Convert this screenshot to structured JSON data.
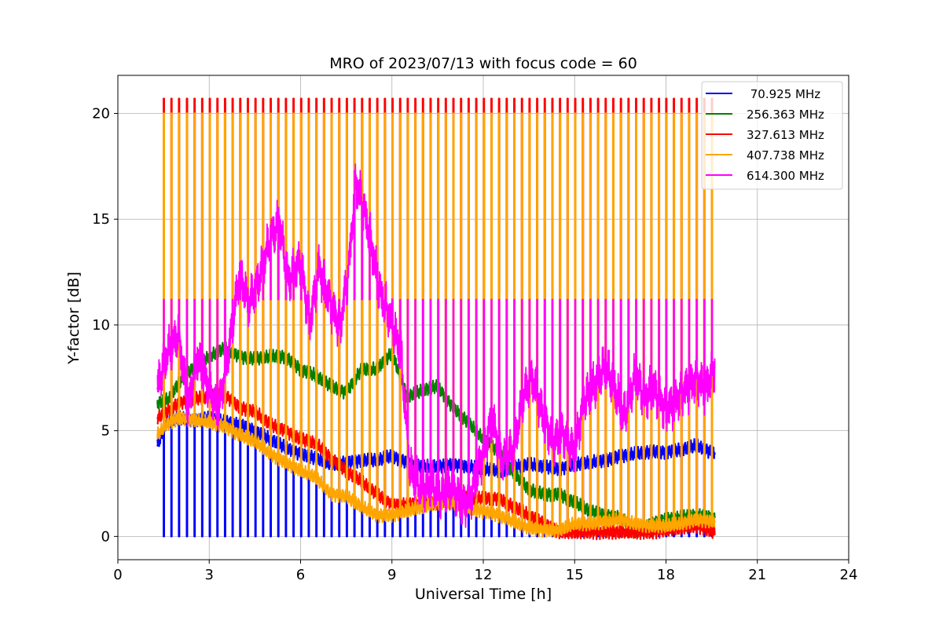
{
  "chart_data": {
    "type": "line",
    "title": "MRO of 2023/07/13 with focus code = 60",
    "xlabel": "Universal Time [h]",
    "ylabel": "Y-factor [dB]",
    "xlim": [
      0,
      24
    ],
    "ylim": [
      -1.1,
      21.8
    ],
    "xticks": [
      0,
      3,
      6,
      9,
      12,
      15,
      18,
      21,
      24
    ],
    "yticks": [
      0,
      5,
      10,
      15,
      20
    ],
    "grid": true,
    "legend_position": "top-right",
    "series": [
      {
        "name": "70.925 MHz",
        "legend_label": " 70.925 MHz",
        "color": "#0000ff",
        "calibration_spike_low": 0.0,
        "calibration_spike_start": 1.5,
        "calibration_spike_end": 19.6,
        "calibration_spike_period": 0.25,
        "x": [
          1.3,
          1.6,
          2.0,
          2.5,
          3.0,
          3.5,
          4.0,
          4.5,
          5.0,
          5.5,
          6.0,
          6.5,
          7.0,
          7.5,
          8.0,
          8.5,
          9.0,
          9.5,
          10.0,
          10.5,
          11.0,
          11.5,
          12.0,
          12.5,
          13.0,
          13.5,
          14.0,
          14.5,
          15.0,
          15.5,
          16.0,
          16.5,
          17.0,
          17.5,
          18.0,
          18.5,
          19.0,
          19.6
        ],
        "y": [
          4.3,
          5.4,
          5.6,
          5.5,
          5.6,
          5.4,
          5.3,
          5.0,
          4.6,
          4.2,
          3.9,
          3.7,
          3.4,
          3.5,
          3.6,
          3.6,
          3.8,
          3.5,
          3.3,
          3.3,
          3.4,
          3.3,
          3.2,
          3.1,
          3.3,
          3.4,
          3.3,
          3.2,
          3.4,
          3.5,
          3.6,
          3.8,
          3.9,
          4.0,
          4.0,
          4.1,
          4.3,
          3.9
        ]
      },
      {
        "name": "256.363 MHz",
        "color": "#008000",
        "x": [
          1.3,
          1.7,
          2.0,
          2.5,
          3.0,
          3.5,
          4.0,
          4.5,
          5.0,
          5.5,
          6.0,
          6.5,
          7.0,
          7.5,
          8.0,
          8.5,
          9.0,
          9.5,
          10.0,
          10.5,
          11.0,
          11.5,
          12.0,
          12.5,
          13.0,
          13.5,
          14.0,
          14.5,
          15.0,
          15.5,
          16.0,
          16.5,
          17.0,
          17.5,
          18.0,
          18.5,
          19.0,
          19.6
        ],
        "y": [
          6.3,
          6.5,
          7.3,
          8.0,
          8.5,
          8.9,
          8.5,
          8.4,
          8.5,
          8.5,
          7.9,
          7.6,
          7.1,
          6.8,
          7.9,
          7.9,
          8.7,
          6.6,
          6.9,
          7.1,
          6.1,
          5.4,
          4.6,
          4.0,
          3.0,
          2.2,
          2.0,
          2.0,
          1.6,
          1.2,
          1.0,
          0.9,
          0.2,
          0.6,
          0.8,
          0.9,
          1.0,
          0.9
        ]
      },
      {
        "name": "327.613 MHz",
        "color": "#ff0000",
        "calibration_spike_high": 20.7,
        "calibration_spike_start": 1.5,
        "calibration_spike_end": 19.6,
        "calibration_spike_period": 0.25,
        "x": [
          1.3,
          1.7,
          2.0,
          2.5,
          3.0,
          3.5,
          4.0,
          4.5,
          5.0,
          5.5,
          6.0,
          6.5,
          7.0,
          7.5,
          8.0,
          8.5,
          9.0,
          9.5,
          10.0,
          10.5,
          11.0,
          11.5,
          12.0,
          12.5,
          13.0,
          13.5,
          14.0,
          14.5,
          15.0,
          15.5,
          16.0,
          16.5,
          17.0,
          17.5,
          18.0,
          18.5,
          19.0,
          19.6
        ],
        "y": [
          5.6,
          6.0,
          6.3,
          6.5,
          6.6,
          6.7,
          6.1,
          5.9,
          5.3,
          5.0,
          4.6,
          4.4,
          3.7,
          3.1,
          2.6,
          2.0,
          1.5,
          1.5,
          1.6,
          1.6,
          1.7,
          1.8,
          1.8,
          1.8,
          1.4,
          1.0,
          0.6,
          0.2,
          0.2,
          0.2,
          0.2,
          0.2,
          0.2,
          0.2,
          0.3,
          0.4,
          0.5,
          0.2
        ]
      },
      {
        "name": "407.738 MHz",
        "color": "#ffa500",
        "calibration_spike_high": 20.0,
        "calibration_spike_start": 1.5,
        "calibration_spike_end": 19.6,
        "calibration_spike_period": 0.25,
        "x": [
          1.3,
          1.6,
          2.0,
          2.5,
          3.0,
          3.5,
          4.0,
          4.5,
          5.0,
          5.5,
          6.0,
          6.5,
          7.0,
          7.5,
          8.0,
          8.5,
          9.0,
          9.5,
          10.0,
          10.5,
          11.0,
          11.5,
          12.0,
          12.5,
          13.0,
          13.5,
          14.0,
          14.5,
          15.0,
          15.5,
          16.0,
          16.5,
          17.0,
          17.5,
          18.0,
          18.5,
          19.0,
          19.6
        ],
        "y": [
          4.8,
          5.3,
          5.6,
          5.5,
          5.4,
          5.2,
          4.8,
          4.5,
          3.9,
          3.5,
          3.1,
          2.8,
          2.0,
          1.9,
          1.4,
          1.0,
          1.0,
          1.2,
          1.4,
          1.6,
          1.6,
          1.3,
          1.2,
          1.0,
          0.7,
          0.4,
          0.3,
          0.3,
          0.6,
          0.6,
          0.7,
          0.8,
          0.6,
          0.5,
          0.5,
          0.6,
          0.8,
          0.7
        ]
      },
      {
        "name": "614.300 MHz",
        "color": "#ff00ff",
        "calibration_spike_high": 11.2,
        "calibration_spike_start": 1.5,
        "calibration_spike_end": 19.6,
        "calibration_spike_period": 0.25,
        "x": [
          1.3,
          1.6,
          2.0,
          2.3,
          2.6,
          3.0,
          3.3,
          3.6,
          4.0,
          4.3,
          4.6,
          5.0,
          5.3,
          5.6,
          6.0,
          6.3,
          6.6,
          7.0,
          7.3,
          7.6,
          7.8,
          8.0,
          8.3,
          8.6,
          9.0,
          9.3,
          9.6,
          10.0,
          10.3,
          10.6,
          11.0,
          11.3,
          11.6,
          12.0,
          12.3,
          12.6,
          13.0,
          13.3,
          13.6,
          14.0,
          14.3,
          14.6,
          15.0,
          15.3,
          15.6,
          16.0,
          16.3,
          16.6,
          17.0,
          17.3,
          17.6,
          18.0,
          18.3,
          18.6,
          19.0,
          19.3,
          19.6
        ],
        "y": [
          7.0,
          8.5,
          9.5,
          6.0,
          8.5,
          7.0,
          6.0,
          8.5,
          12.5,
          11.0,
          12.0,
          14.0,
          14.8,
          12.0,
          13.0,
          10.0,
          12.8,
          11.0,
          10.0,
          13.0,
          16.8,
          16.0,
          14.0,
          11.5,
          10.0,
          8.5,
          3.0,
          2.2,
          2.5,
          2.0,
          2.5,
          1.5,
          2.0,
          4.0,
          5.5,
          3.5,
          4.0,
          6.5,
          7.5,
          5.5,
          4.5,
          5.0,
          4.0,
          6.5,
          7.0,
          8.0,
          7.0,
          5.5,
          7.5,
          6.5,
          7.0,
          6.0,
          6.5,
          7.0,
          7.5,
          7.0,
          8.0
        ]
      }
    ]
  }
}
